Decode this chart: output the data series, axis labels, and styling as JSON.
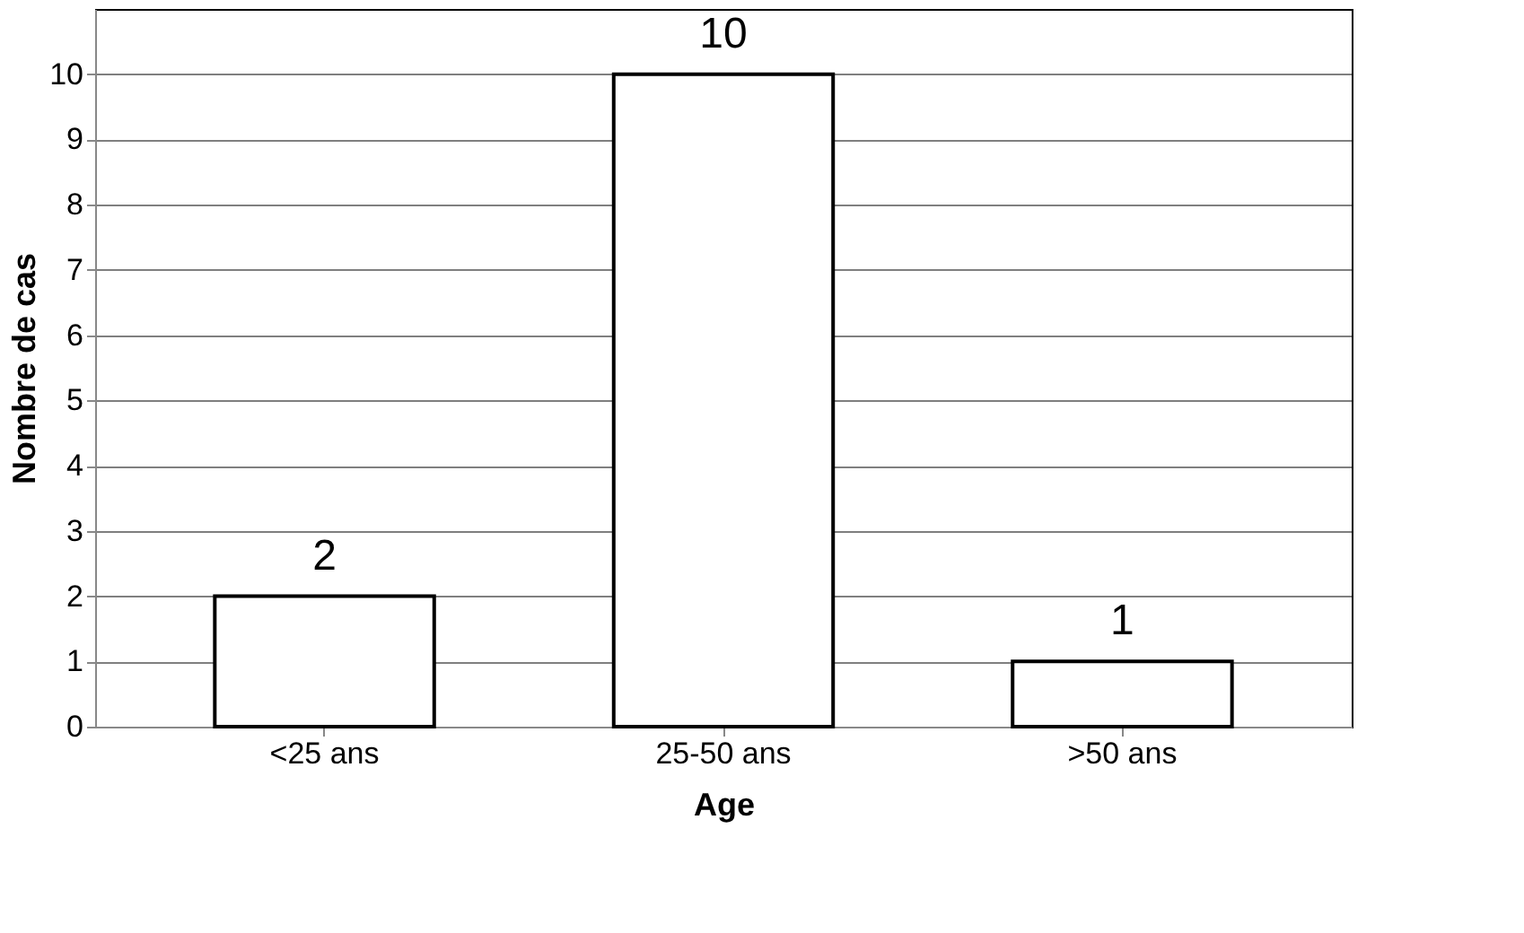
{
  "chart_data": {
    "type": "bar",
    "xlabel": "Age",
    "ylabel": "Nombre de cas",
    "categories": [
      "<25 ans",
      "25-50 ans",
      ">50 ans"
    ],
    "values": [
      2,
      10,
      1
    ],
    "color": "#ffffff",
    "ylim": [
      0,
      11
    ],
    "yticks": [
      0,
      1,
      2,
      3,
      4,
      5,
      6,
      7,
      8,
      9,
      10
    ],
    "grid": "y",
    "data_labels": true
  }
}
